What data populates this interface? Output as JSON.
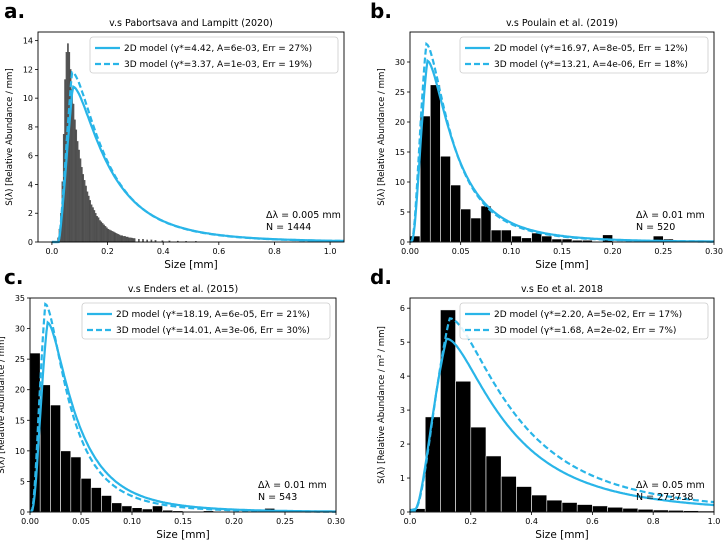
{
  "chart_data": [
    {
      "panel": "a.",
      "type": "bar",
      "title": "v.s Pabortsava and Lampitt (2020)",
      "xlabel": "Size [mm]",
      "ylabel": "S(λ) [Relative Abundance / mm]",
      "xlim": [
        -0.05,
        1.05
      ],
      "ylim": [
        0,
        14.6
      ],
      "xticks": [
        "0.0",
        "0.2",
        "0.4",
        "0.6",
        "0.8",
        "1.0"
      ],
      "yticks": [
        "0",
        "2",
        "4",
        "6",
        "8",
        "10",
        "12",
        "14"
      ],
      "legend": [
        "2D model (γ*=4.42,   A=6e-03,  Err = 27%)",
        "3D model (γ*=3.37,   A=1e-03,  Err = 19%)"
      ],
      "annotation": [
        "Δλ = 0.005 mm",
        "N = 1444"
      ],
      "bar_color": "#555555",
      "bin_width": 0.005,
      "bars": [
        [
          0.0225,
          0.3
        ],
        [
          0.0275,
          0.9
        ],
        [
          0.0325,
          2.0
        ],
        [
          0.0375,
          4.2
        ],
        [
          0.0425,
          7.5
        ],
        [
          0.0475,
          11.3
        ],
        [
          0.0525,
          13.2
        ],
        [
          0.0575,
          13.8
        ],
        [
          0.0625,
          13.2
        ],
        [
          0.0675,
          12.0
        ],
        [
          0.0725,
          10.6
        ],
        [
          0.0775,
          9.6
        ],
        [
          0.0825,
          8.5
        ],
        [
          0.0875,
          7.8
        ],
        [
          0.0925,
          7.0
        ],
        [
          0.0975,
          6.4
        ],
        [
          0.1025,
          5.8
        ],
        [
          0.1075,
          5.2
        ],
        [
          0.1125,
          4.7
        ],
        [
          0.1175,
          4.3
        ],
        [
          0.1225,
          3.9
        ],
        [
          0.1275,
          3.5
        ],
        [
          0.1325,
          3.2
        ],
        [
          0.1375,
          2.9
        ],
        [
          0.1425,
          2.6
        ],
        [
          0.1475,
          2.4
        ],
        [
          0.1525,
          2.2
        ],
        [
          0.1575,
          2.0
        ],
        [
          0.1625,
          1.8
        ],
        [
          0.1675,
          1.7
        ],
        [
          0.1725,
          1.5
        ],
        [
          0.1775,
          1.4
        ],
        [
          0.1825,
          1.3
        ],
        [
          0.1875,
          1.2
        ],
        [
          0.1925,
          1.1
        ],
        [
          0.1975,
          1.0
        ],
        [
          0.2025,
          0.9
        ],
        [
          0.2075,
          0.85
        ],
        [
          0.2125,
          0.8
        ],
        [
          0.2175,
          0.75
        ],
        [
          0.2225,
          0.7
        ],
        [
          0.2275,
          0.65
        ],
        [
          0.2325,
          0.6
        ],
        [
          0.2375,
          0.55
        ],
        [
          0.2425,
          0.5
        ],
        [
          0.2475,
          0.45
        ],
        [
          0.2525,
          0.45
        ],
        [
          0.2575,
          0.4
        ],
        [
          0.2625,
          0.4
        ],
        [
          0.2675,
          0.35
        ],
        [
          0.2725,
          0.35
        ],
        [
          0.2775,
          0.3
        ],
        [
          0.2825,
          0.3
        ],
        [
          0.2875,
          0.28
        ],
        [
          0.2925,
          0.25
        ],
        [
          0.2975,
          0.25
        ],
        [
          0.3125,
          0.2
        ],
        [
          0.3275,
          0.2
        ],
        [
          0.3425,
          0.15
        ],
        [
          0.3575,
          0.15
        ],
        [
          0.3725,
          0.12
        ],
        [
          0.3975,
          0.1
        ],
        [
          0.4225,
          0.08
        ],
        [
          0.4525,
          0.07
        ],
        [
          0.4825,
          0.06
        ],
        [
          0.5175,
          0.05
        ]
      ],
      "model_2d": {
        "peak_x": 0.075,
        "peak_y": 10.8,
        "tail_y": 0.2
      },
      "model_3d": {
        "peak_x": 0.072,
        "peak_y": 11.8,
        "tail_y": 0.2
      }
    },
    {
      "panel": "b.",
      "type": "bar",
      "title": "v.s Poulain et al. (2019)",
      "xlabel": "Size [mm]",
      "ylabel": "S(λ) [Relative Abundance / mm]",
      "xlim": [
        0.0,
        0.3
      ],
      "ylim": [
        0,
        35
      ],
      "xticks": [
        "0.00",
        "0.05",
        "0.10",
        "0.15",
        "0.20",
        "0.25",
        "0.30"
      ],
      "yticks": [
        "0",
        "5",
        "10",
        "15",
        "20",
        "25",
        "30"
      ],
      "legend": [
        "2D model (γ*=16.97,   A=8e-05,  Err = 12%)",
        "3D model (γ*=13.21,   A=4e-06,  Err = 18%)"
      ],
      "annotation": [
        "Δλ = 0.01 mm",
        "N = 520"
      ],
      "bar_color": "#000000",
      "bin_width": 0.01,
      "bars": [
        [
          0.005,
          1.0
        ],
        [
          0.015,
          21.0
        ],
        [
          0.025,
          26.2
        ],
        [
          0.035,
          14.3
        ],
        [
          0.045,
          9.5
        ],
        [
          0.055,
          5.5
        ],
        [
          0.065,
          4.0
        ],
        [
          0.075,
          6.0
        ],
        [
          0.085,
          2.0
        ],
        [
          0.095,
          2.0
        ],
        [
          0.105,
          1.0
        ],
        [
          0.115,
          0.7
        ],
        [
          0.125,
          1.5
        ],
        [
          0.135,
          1.0
        ],
        [
          0.145,
          0.5
        ],
        [
          0.155,
          0.5
        ],
        [
          0.165,
          0.3
        ],
        [
          0.175,
          0.3
        ],
        [
          0.195,
          1.2
        ],
        [
          0.235,
          0.2
        ],
        [
          0.245,
          1.0
        ],
        [
          0.255,
          0.5
        ]
      ],
      "model_2d": {
        "peak_x": 0.017,
        "peak_y": 30.2,
        "tail_y": 0.3
      },
      "model_3d": {
        "peak_x": 0.016,
        "peak_y": 33.0,
        "tail_y": 0.2
      }
    },
    {
      "panel": "c.",
      "type": "bar",
      "title": "v.s Enders et al. (2015)",
      "xlabel": "Size [mm]",
      "ylabel": "S(λ) [Relative Abundance / mm]",
      "xlim": [
        0.0,
        0.3
      ],
      "ylim": [
        0,
        35
      ],
      "xticks": [
        "0.00",
        "0.05",
        "0.10",
        "0.15",
        "0.20",
        "0.25",
        "0.30"
      ],
      "yticks": [
        "0",
        "5",
        "10",
        "15",
        "20",
        "25",
        "30",
        "35"
      ],
      "legend": [
        "2D model (γ*=18.19,   A=6e-05,  Err = 21%)",
        "3D model (γ*=14.01,   A=3e-06,  Err = 30%)"
      ],
      "annotation": [
        "Δλ = 0.01 mm",
        "N = 543"
      ],
      "bar_color": "#000000",
      "bin_width": 0.01,
      "bars": [
        [
          0.005,
          26.0
        ],
        [
          0.015,
          20.8
        ],
        [
          0.025,
          17.5
        ],
        [
          0.035,
          10.0
        ],
        [
          0.045,
          9.0
        ],
        [
          0.055,
          5.5
        ],
        [
          0.065,
          4.0
        ],
        [
          0.075,
          2.7
        ],
        [
          0.085,
          1.5
        ],
        [
          0.095,
          1.0
        ],
        [
          0.105,
          0.7
        ],
        [
          0.115,
          0.5
        ],
        [
          0.125,
          1.0
        ],
        [
          0.135,
          0.3
        ],
        [
          0.145,
          0.2
        ],
        [
          0.175,
          0.2
        ],
        [
          0.235,
          0.6
        ]
      ],
      "model_2d": {
        "peak_x": 0.017,
        "peak_y": 31.0,
        "tail_y": 0.3
      },
      "model_3d": {
        "peak_x": 0.015,
        "peak_y": 34.0,
        "tail_y": 0.2
      }
    },
    {
      "panel": "d.",
      "type": "bar",
      "title": "v.s Eo et al. 2018",
      "xlabel": "Size [mm]",
      "ylabel": "S(λ) [Relative Abundance / m² / mm]",
      "xlim": [
        0.0,
        1.0
      ],
      "ylim": [
        0,
        6.3
      ],
      "xticks": [
        "0.0",
        "0.2",
        "0.4",
        "0.6",
        "0.8",
        "1.0"
      ],
      "yticks": [
        "0",
        "1",
        "2",
        "3",
        "4",
        "5",
        "6"
      ],
      "legend": [
        "2D model (γ*=2.20,   A=5e-02,  Err = 17%)",
        "3D model (γ*=1.68,   A=2e-02,  Err = 7%)"
      ],
      "annotation": [
        "Δλ = 0.05 mm",
        "N = 273738"
      ],
      "bar_color": "#000000",
      "bin_width": 0.05,
      "bars": [
        [
          0.025,
          0.1
        ],
        [
          0.075,
          2.8
        ],
        [
          0.125,
          5.95
        ],
        [
          0.175,
          3.85
        ],
        [
          0.225,
          2.5
        ],
        [
          0.275,
          1.65
        ],
        [
          0.325,
          1.05
        ],
        [
          0.375,
          0.75
        ],
        [
          0.425,
          0.5
        ],
        [
          0.475,
          0.35
        ],
        [
          0.525,
          0.28
        ],
        [
          0.575,
          0.22
        ],
        [
          0.625,
          0.18
        ],
        [
          0.675,
          0.14
        ],
        [
          0.725,
          0.11
        ],
        [
          0.775,
          0.08
        ],
        [
          0.825,
          0.06
        ],
        [
          0.875,
          0.05
        ],
        [
          0.925,
          0.04
        ],
        [
          0.975,
          0.03
        ]
      ],
      "model_2d": {
        "peak_x": 0.12,
        "peak_y": 5.1,
        "tail_y": 0.15
      },
      "model_3d": {
        "peak_x": 0.13,
        "peak_y": 5.7,
        "tail_y": 0.05
      }
    }
  ],
  "colors": {
    "model_line": "#29b5e8",
    "axis": "#000000",
    "legend_border": "#cccccc"
  }
}
